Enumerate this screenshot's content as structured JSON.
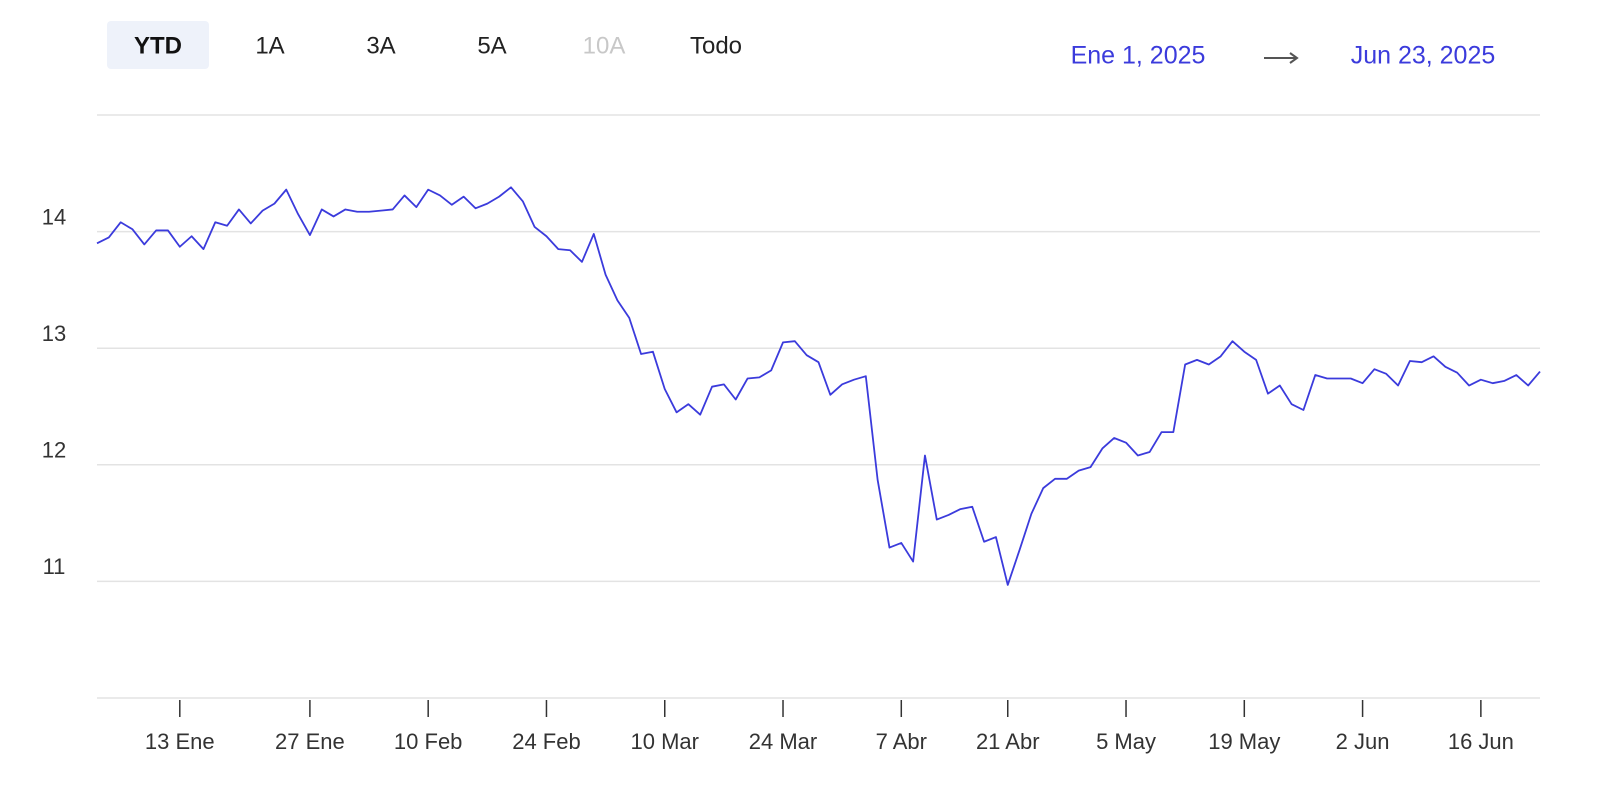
{
  "range_buttons": [
    {
      "label": "YTD",
      "active": true
    },
    {
      "label": "1A"
    },
    {
      "label": "3A"
    },
    {
      "label": "5A"
    },
    {
      "label": "10A",
      "disabled": true
    },
    {
      "label": "Todo"
    }
  ],
  "date_range": {
    "start": "Ene 1, 2025",
    "end": "Jun 23, 2025"
  },
  "chart_data": {
    "type": "line",
    "color": "#3b3bdc",
    "grid": true,
    "ylim": [
      10,
      15
    ],
    "yticks": [
      11,
      12,
      13,
      14
    ],
    "categories": [
      null,
      null,
      null,
      null,
      null,
      null,
      null,
      "13 Ene",
      null,
      null,
      null,
      null,
      null,
      null,
      null,
      null,
      null,
      null,
      "27 Ene",
      null,
      null,
      null,
      null,
      null,
      null,
      null,
      null,
      null,
      "10 Feb",
      null,
      null,
      null,
      null,
      null,
      null,
      null,
      null,
      null,
      "24 Feb",
      null,
      null,
      null,
      null,
      null,
      null,
      null,
      null,
      null,
      "10 Mar",
      null,
      null,
      null,
      null,
      null,
      null,
      null,
      null,
      null,
      "24 Mar",
      null,
      null,
      null,
      null,
      null,
      null,
      null,
      null,
      null,
      "7 Abr",
      null,
      null,
      null,
      null,
      null,
      null,
      null,
      null,
      "21 Abr",
      null,
      null,
      null,
      null,
      null,
      null,
      null,
      null,
      null,
      "5 May",
      null,
      null,
      null,
      null,
      null,
      null,
      null,
      null,
      null,
      "19 May",
      null,
      null,
      null,
      null,
      null,
      null,
      null,
      null,
      null,
      "2 Jun",
      null,
      null,
      null,
      null,
      null,
      null,
      null,
      null,
      null,
      "16 Jun",
      null,
      null,
      null,
      null,
      null
    ],
    "values": [
      13.9,
      13.95,
      14.08,
      14.02,
      13.89,
      14.01,
      14.01,
      13.87,
      13.96,
      13.85,
      14.08,
      14.05,
      14.19,
      14.07,
      14.18,
      14.24,
      14.36,
      14.15,
      13.97,
      14.19,
      14.13,
      14.19,
      14.17,
      14.17,
      14.18,
      14.19,
      14.31,
      14.21,
      14.36,
      14.31,
      14.23,
      14.3,
      14.2,
      14.24,
      14.3,
      14.38,
      14.26,
      14.04,
      13.96,
      13.85,
      13.84,
      13.74,
      13.98,
      13.63,
      13.41,
      13.26,
      12.95,
      12.97,
      12.65,
      12.45,
      12.52,
      12.43,
      12.67,
      12.69,
      12.56,
      12.74,
      12.75,
      12.81,
      13.05,
      13.06,
      12.94,
      12.88,
      12.6,
      12.69,
      12.73,
      12.76,
      11.87,
      11.29,
      11.33,
      11.17,
      12.08,
      11.53,
      11.57,
      11.62,
      11.64,
      11.34,
      11.38,
      10.97,
      11.27,
      11.58,
      11.8,
      11.88,
      11.88,
      11.95,
      11.98,
      12.14,
      12.23,
      12.19,
      12.08,
      12.11,
      12.28,
      12.28,
      12.86,
      12.9,
      12.86,
      12.93,
      13.06,
      12.97,
      12.9,
      12.61,
      12.68,
      12.52,
      12.47,
      12.77,
      12.74,
      12.74,
      12.74,
      12.7,
      12.82,
      12.78,
      12.68,
      12.89,
      12.88,
      12.93,
      12.84,
      12.79,
      12.68,
      12.73,
      12.7,
      12.72,
      12.77,
      12.68,
      12.8
    ]
  }
}
